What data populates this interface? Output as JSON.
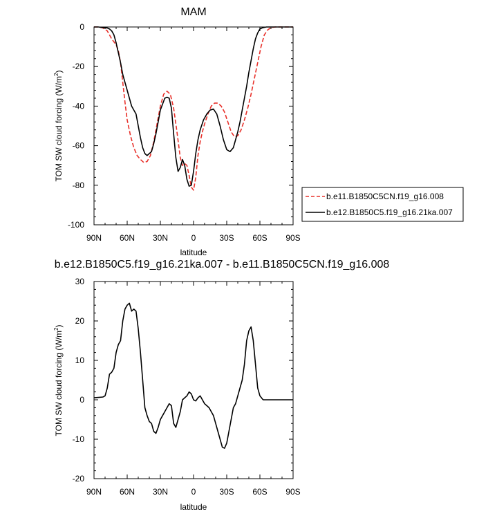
{
  "chart_data": [
    {
      "type": "line",
      "title": "MAM",
      "xlabel": "latitude",
      "ylabel_main": "TOM SW cloud forcing (W/m",
      "ylabel_sup": "2",
      "ylabel_tail": ")",
      "xlim": [
        90,
        -90
      ],
      "ylim": [
        -100,
        0
      ],
      "x_ticks": [
        90,
        60,
        30,
        0,
        -30,
        -60,
        -90
      ],
      "x_tick_labels": [
        "90N",
        "60N",
        "30N",
        "0",
        "30S",
        "60S",
        "90S"
      ],
      "y_ticks": [
        0,
        -20,
        -40,
        -60,
        -80,
        -100
      ],
      "y_tick_labels": [
        "0",
        "-20",
        "-40",
        "-60",
        "-80",
        "-100"
      ],
      "grid": false,
      "legend_position": "right",
      "series": [
        {
          "name": "b.e11.B1850C5CN.f19_g16.008",
          "color": "#e8302a",
          "dash": "dashed",
          "x": [
            90,
            86,
            82,
            78,
            74,
            70,
            68,
            66,
            64,
            62,
            60,
            57,
            54,
            51,
            48,
            45,
            42,
            39,
            36,
            33,
            30,
            27,
            24,
            21,
            18,
            15,
            12,
            10,
            8,
            6,
            4,
            2,
            0,
            -2,
            -4,
            -6,
            -8,
            -10,
            -13,
            -16,
            -19,
            -22,
            -25,
            -28,
            -31,
            -34,
            -37,
            -40,
            -43,
            -46,
            -49,
            -52,
            -55,
            -58,
            -61,
            -64,
            -67,
            -70,
            -74,
            -78,
            -82,
            -86,
            -90
          ],
          "y": [
            0,
            0,
            -0.5,
            -2,
            -6,
            -9,
            -12,
            -18,
            -28,
            -38,
            -47,
            -55,
            -61,
            -65,
            -67,
            -68.5,
            -68,
            -65,
            -58,
            -49,
            -40,
            -34,
            -32.5,
            -34,
            -41,
            -53,
            -66,
            -70,
            -69,
            -70,
            -75,
            -81,
            -82.5,
            -76,
            -65,
            -58,
            -53,
            -49,
            -44,
            -40,
            -38.5,
            -38.5,
            -40,
            -43,
            -48,
            -53,
            -55.5,
            -55,
            -52,
            -47,
            -41,
            -34,
            -26,
            -18,
            -10,
            -4,
            -1.5,
            -0.3,
            0,
            0,
            0,
            0,
            0
          ]
        },
        {
          "name": "b.e12.B1850C5.f19_g16.21ka.007",
          "color": "#000000",
          "dash": "solid",
          "x": [
            90,
            86,
            82,
            78,
            76,
            74,
            72,
            70,
            68,
            66,
            64,
            62,
            60,
            58,
            56,
            54,
            52,
            50,
            48,
            46,
            44,
            42,
            40,
            38,
            36,
            34,
            32,
            30,
            28,
            26,
            24,
            22,
            20,
            18,
            16,
            14,
            12,
            10,
            8,
            6,
            4,
            2,
            0,
            -2,
            -4,
            -6,
            -9,
            -12,
            -15,
            -18,
            -21,
            -24,
            -27,
            -30,
            -33,
            -36,
            -38,
            -40,
            -42,
            -44,
            -46,
            -48,
            -50,
            -52,
            -54,
            -56,
            -58,
            -60,
            -62,
            -64,
            -66,
            -68,
            -70,
            -72,
            -74,
            -78,
            -82,
            -86,
            -90
          ],
          "y": [
            0,
            0,
            -0.3,
            -0.5,
            -1,
            -2,
            -4,
            -8,
            -13,
            -18,
            -24,
            -28,
            -32,
            -36,
            -40,
            -42,
            -44,
            -50,
            -56,
            -61,
            -64,
            -65,
            -64,
            -63,
            -59,
            -54,
            -48,
            -42,
            -39,
            -36,
            -35.5,
            -36,
            -41,
            -54,
            -66,
            -73,
            -71,
            -67,
            -70,
            -77,
            -80.5,
            -80,
            -73,
            -64,
            -57,
            -52,
            -47,
            -44,
            -42,
            -41.5,
            -44,
            -50,
            -57,
            -62,
            -63,
            -61,
            -57,
            -53,
            -48,
            -42,
            -36,
            -30,
            -23,
            -17,
            -11,
            -6,
            -3,
            -1,
            -0.5,
            -0.2,
            0,
            0,
            0,
            0,
            0,
            0,
            0,
            0,
            0
          ]
        }
      ]
    },
    {
      "type": "line",
      "title": "b.e12.B1850C5.f19_g16.21ka.007 - b.e11.B1850C5CN.f19_g16.008",
      "xlabel": "latitude",
      "ylabel_main": "TOM SW cloud forcing (W/m",
      "ylabel_sup": "2",
      "ylabel_tail": ")",
      "xlim": [
        90,
        -90
      ],
      "ylim": [
        -20,
        30
      ],
      "x_ticks": [
        90,
        60,
        30,
        0,
        -30,
        -60,
        -90
      ],
      "x_tick_labels": [
        "90N",
        "60N",
        "30N",
        "0",
        "30S",
        "60S",
        "90S"
      ],
      "y_ticks": [
        30,
        20,
        10,
        0,
        -10,
        -20
      ],
      "y_tick_labels": [
        "30",
        "20",
        "10",
        "0",
        "-10",
        "-20"
      ],
      "grid": false,
      "series": [
        {
          "color": "#000000",
          "dash": "solid",
          "x": [
            90,
            86,
            82,
            80,
            78,
            76,
            74,
            72,
            70,
            68,
            66,
            64,
            62,
            60,
            58,
            56,
            54,
            52,
            50,
            48,
            46,
            44,
            42,
            40,
            38,
            36,
            34,
            32,
            30,
            28,
            26,
            24,
            22,
            20,
            18,
            16,
            14,
            12,
            10,
            8,
            6,
            4,
            2,
            0,
            -2,
            -4,
            -6,
            -8,
            -10,
            -12,
            -14,
            -16,
            -18,
            -20,
            -22,
            -24,
            -26,
            -28,
            -30,
            -32,
            -34,
            -36,
            -38,
            -40,
            -42,
            -44,
            -46,
            -48,
            -50,
            -52,
            -54,
            -56,
            -58,
            -60,
            -62,
            -63,
            -64,
            -66,
            -68,
            -70,
            -72,
            -74,
            -78,
            -82,
            -86,
            -90
          ],
          "y": [
            0.5,
            0.6,
            0.7,
            1,
            3,
            6.5,
            7,
            8,
            12,
            14,
            15,
            20,
            23,
            24,
            24.5,
            22.5,
            23,
            22.5,
            18,
            12,
            5,
            -2,
            -4,
            -5.5,
            -6,
            -8,
            -8.5,
            -7,
            -5,
            -4,
            -3,
            -2,
            -1,
            -1.5,
            -6,
            -7,
            -5,
            -3,
            0,
            0.5,
            1,
            2,
            1.5,
            0,
            -0.3,
            0.5,
            1,
            0,
            -1,
            -1.5,
            -2,
            -3,
            -4,
            -6,
            -8,
            -10,
            -12,
            -12.3,
            -11,
            -8,
            -5,
            -2,
            -1,
            1,
            3,
            5,
            9,
            15,
            17.5,
            18.5,
            15,
            9,
            3,
            1,
            0.3,
            0,
            0,
            0,
            0,
            0,
            0,
            0,
            0,
            0,
            0,
            0
          ]
        }
      ]
    }
  ]
}
